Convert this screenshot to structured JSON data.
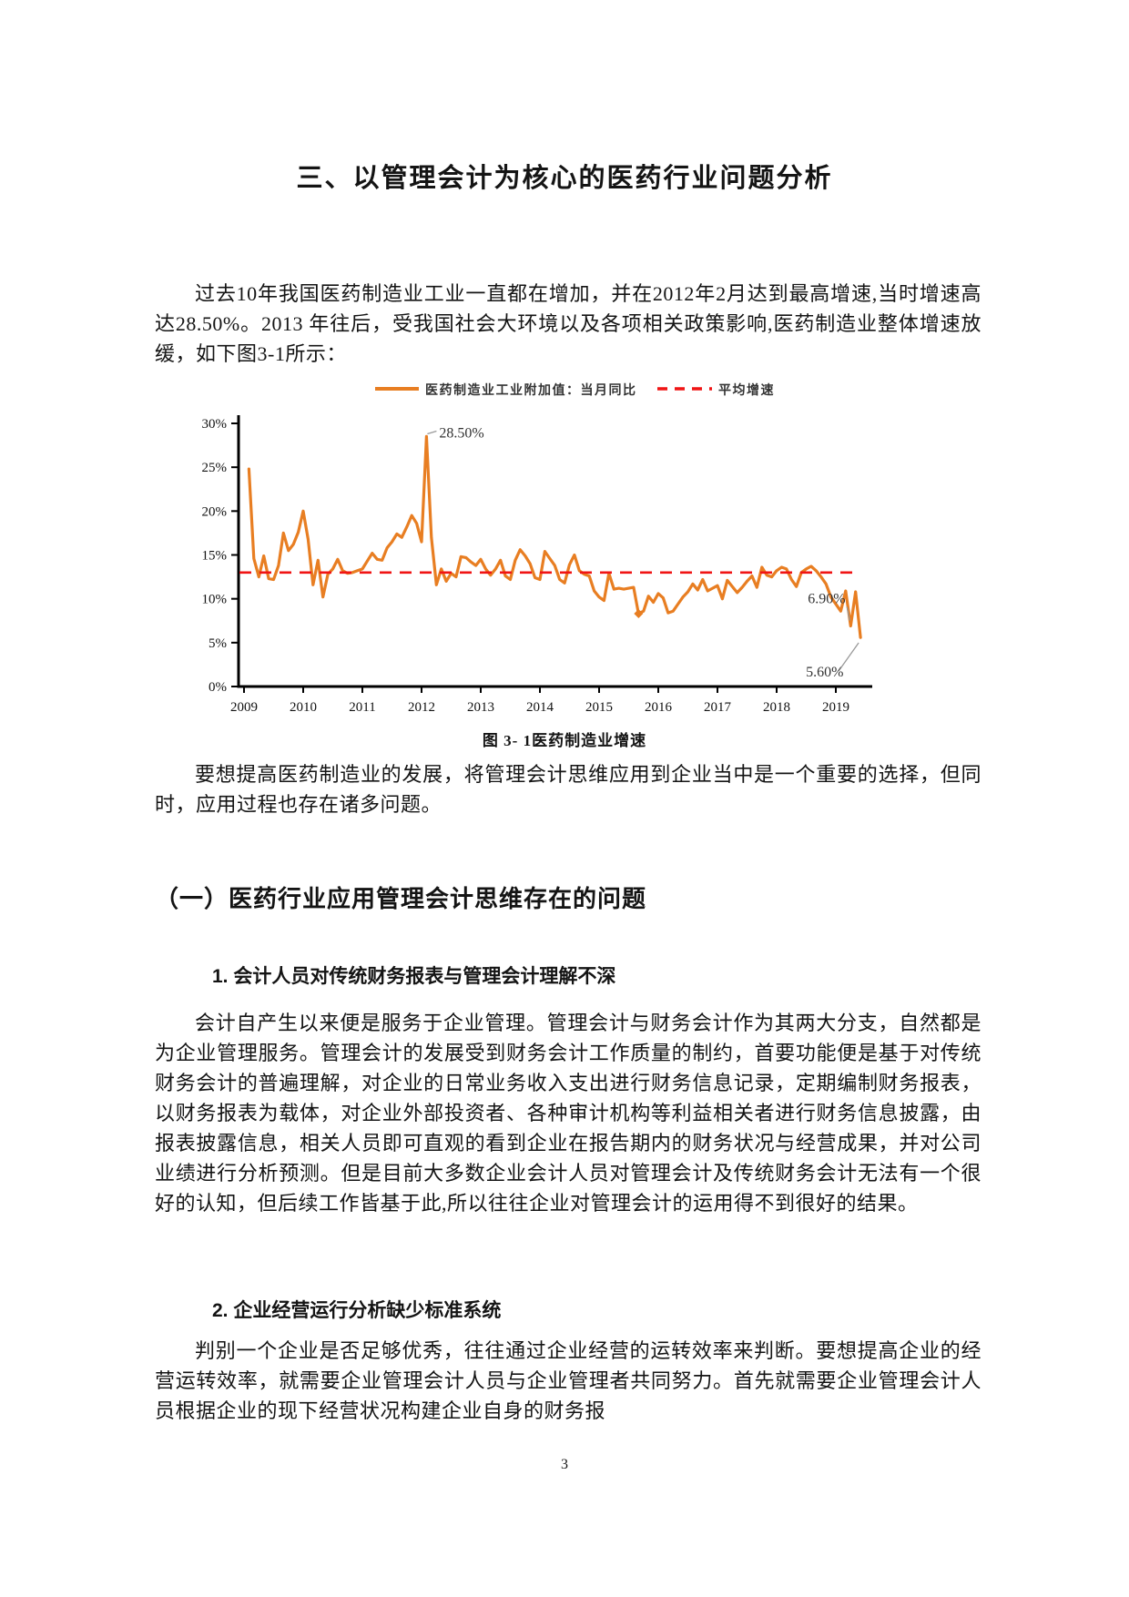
{
  "page": {
    "title": "三、以管理会计为核心的医药行业问题分析",
    "page_number": "3"
  },
  "paragraphs": {
    "p1": "过去10年我国医药制造业工业一直都在增加，并在2012年2月达到最高增速,当时增速高达28.50%。2013 年往后，受我国社会大环境以及各项相关政策影响,医药制造业整体增速放缓，如下图3-1所示：",
    "p2": "要想提高医药制造业的发展，将管理会计思维应用到企业当中是一个重要的选择，但同时，应用过程也存在诸多问题。",
    "section1_title": "（一）医药行业应用管理会计思维存在的问题",
    "sub1_title": "1. 会计人员对传统财务报表与管理会计理解不深",
    "p3": "会计自产生以来便是服务于企业管理。管理会计与财务会计作为其两大分支，自然都是为企业管理服务。管理会计的发展受到财务会计工作质量的制约，首要功能便是基于对传统财务会计的普遍理解，对企业的日常业务收入支出进行财务信息记录，定期编制财务报表，以财务报表为载体，对企业外部投资者、各种审计机构等利益相关者进行财务信息披露，由报表披露信息，相关人员即可直观的看到企业在报告期内的财务状况与经营成果，并对公司业绩进行分析预测。但是目前大多数企业会计人员对管理会计及传统财务会计无法有一个很好的认知，但后续工作皆基于此,所以往往企业对管理会计的运用得不到很好的结果。",
    "sub2_title": "2. 企业经营运行分析缺少标准系统",
    "p4": "判别一个企业是否足够优秀，往往通过企业经营的运转效率来判断。要想提高企业的经营运转效率，就需要企业管理会计人员与企业管理者共同努力。首先就需要企业管理会计人员根据企业的现下经营状况构建企业自身的财务报"
  },
  "chart_data": {
    "type": "line",
    "caption": "图 3- 1医药制造业增速",
    "legend": [
      {
        "label": "医药制造业工业附加值：当月同比",
        "color": "#E87E22",
        "style": "solid"
      },
      {
        "label": "平均增速",
        "color": "#F01414",
        "style": "dashed"
      }
    ],
    "x_labels": [
      "2009",
      "2010",
      "2011",
      "2012",
      "2013",
      "2014",
      "2015",
      "2016",
      "2017",
      "2018",
      "2019"
    ],
    "y_ticks": [
      "0%",
      "5%",
      "10%",
      "15%",
      "20%",
      "25%",
      "30%"
    ],
    "ylim": [
      0,
      30
    ],
    "grid": false,
    "legend_position": "top",
    "average_line": 13,
    "marker_point_index": 79,
    "annotations": [
      {
        "text": "28.50%",
        "index": 36,
        "text_offset": [
          14,
          1
        ],
        "leader": [
          [
            1,
            -3
          ],
          [
            11,
            -6
          ]
        ]
      },
      {
        "text": "6.90%",
        "index": 122,
        "text_offset": [
          -47,
          -25
        ],
        "leader": [
          [
            -4,
            -21
          ],
          [
            -1,
            -6
          ]
        ]
      },
      {
        "text": "5.60%",
        "index": 124,
        "text_offset": [
          -60,
          43
        ],
        "leader": [
          [
            -24,
            37
          ],
          [
            -2,
            6
          ]
        ]
      }
    ],
    "series": [
      {
        "name": "医药制造业工业附加值：当月同比",
        "color": "#E87E22",
        "start": "2009-02",
        "freq": "monthly",
        "unit": "%",
        "values": [
          24.8,
          14.6,
          12.5,
          14.9,
          12.3,
          12.2,
          13.8,
          17.5,
          15.5,
          16.2,
          17.6,
          20.0,
          16.8,
          11.6,
          14.4,
          10.2,
          12.8,
          13.4,
          14.5,
          13.2,
          12.9,
          13.0,
          13.2,
          13.4,
          14.3,
          15.2,
          14.5,
          14.4,
          15.8,
          16.5,
          17.4,
          17.0,
          18.2,
          19.5,
          18.6,
          16.5,
          28.5,
          17.0,
          11.6,
          13.4,
          12.0,
          12.9,
          12.5,
          14.8,
          14.7,
          14.2,
          13.8,
          14.5,
          13.4,
          12.7,
          13.4,
          14.4,
          12.6,
          12.2,
          14.4,
          15.6,
          14.9,
          14.0,
          12.4,
          12.2,
          15.4,
          14.6,
          13.8,
          12.2,
          11.8,
          13.9,
          15.0,
          13.2,
          12.8,
          12.6,
          10.9,
          10.2,
          9.8,
          12.9,
          11.1,
          11.2,
          11.1,
          11.2,
          11.3,
          8.3,
          8.6,
          10.3,
          9.6,
          10.6,
          10.1,
          8.4,
          8.6,
          9.4,
          10.2,
          10.8,
          11.7,
          11.0,
          12.2,
          10.9,
          11.2,
          11.5,
          10.0,
          12.1,
          11.4,
          10.7,
          11.3,
          12.0,
          12.6,
          11.3,
          13.6,
          12.7,
          12.5,
          13.2,
          13.6,
          13.4,
          12.2,
          11.4,
          13.0,
          13.4,
          13.7,
          13.2,
          12.5,
          11.7,
          10.2,
          9.4,
          8.6,
          10.9,
          6.9,
          10.8,
          5.6
        ]
      }
    ]
  }
}
